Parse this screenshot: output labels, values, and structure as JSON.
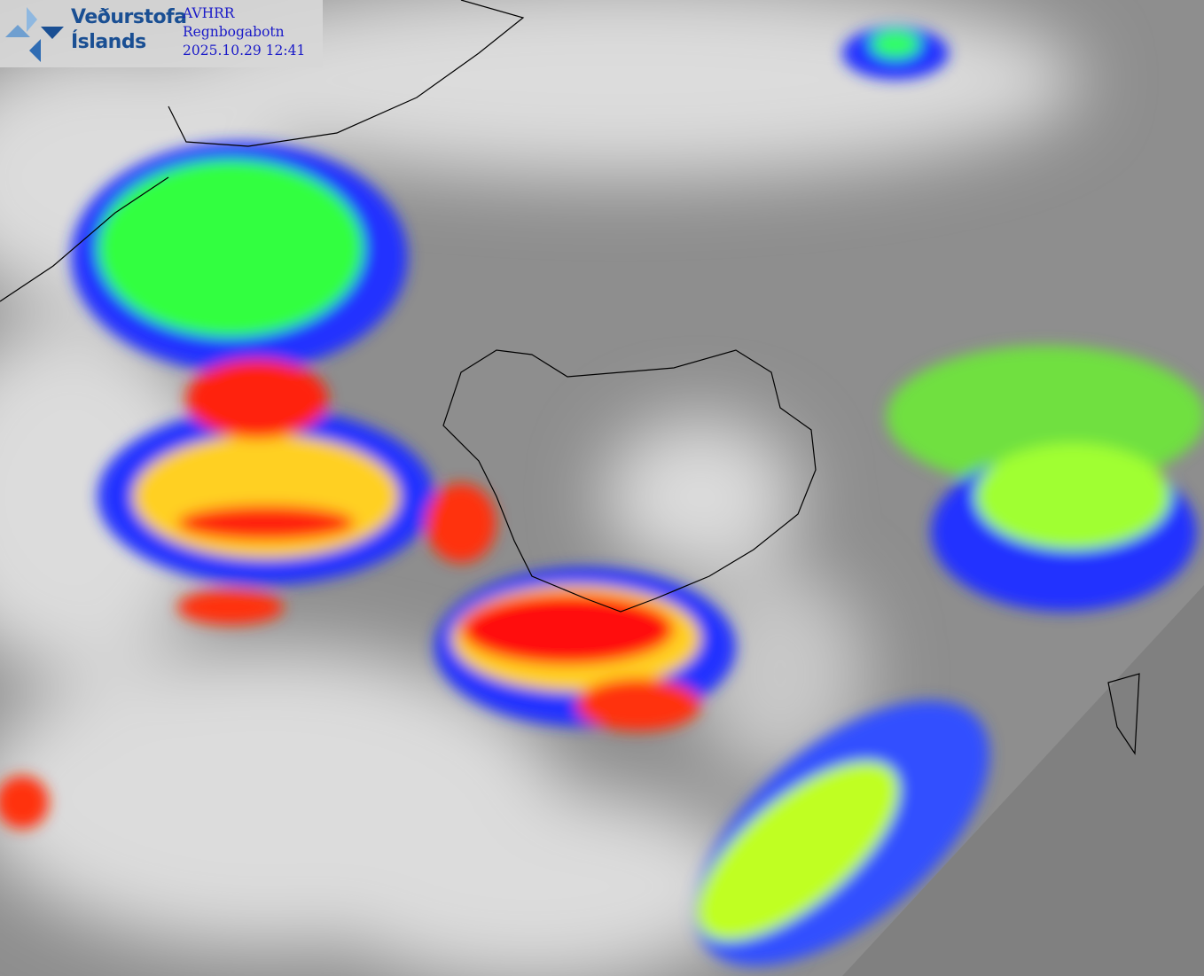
{
  "logo": {
    "line1": "Veðurstofa",
    "line2": "Íslands",
    "brand_color": "#1a4f93"
  },
  "product": {
    "sensor": "AVHRR",
    "name": "Regnbogabotn",
    "timestamp": "2025.10.29 12:41",
    "text_color": "#1a1ac8"
  },
  "imagery": {
    "type": "satellite infrared composite",
    "colors": {
      "background": "#8c8c8c",
      "no_data": "#808080",
      "coastline": "#000000"
    }
  }
}
